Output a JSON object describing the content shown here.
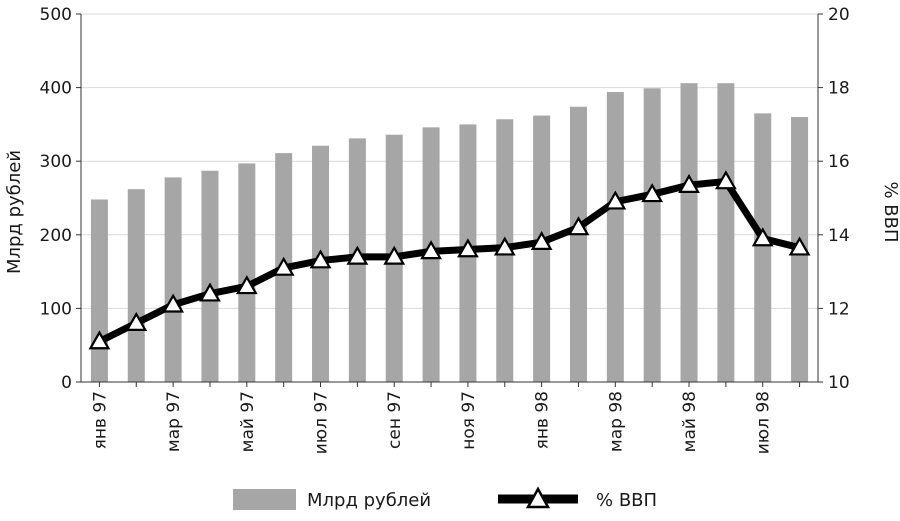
{
  "chart_data": {
    "type": "bar+line",
    "x_labels_shown": [
      "янв 97",
      "мар 97",
      "май 97",
      "июл 97",
      "сен 97",
      "ноя 97",
      "янв 98",
      "мар 98",
      "май 98",
      "июл 98"
    ],
    "categories": [
      "янв 97",
      "фев 97",
      "мар 97",
      "апр 97",
      "май 97",
      "июн 97",
      "июл 97",
      "авг 97",
      "сен 97",
      "окт 97",
      "ноя 97",
      "дек 97",
      "янв 98",
      "фев 98",
      "мар 98",
      "апр 98",
      "май 98",
      "июн 98",
      "июл 98",
      "авг 98"
    ],
    "series": [
      {
        "name": "Млрд рублей",
        "kind": "bar",
        "axis": "left",
        "color": "#a6a6a6",
        "values": [
          248,
          262,
          278,
          287,
          297,
          311,
          321,
          331,
          336,
          346,
          350,
          357,
          362,
          374,
          394,
          399,
          406,
          406,
          365,
          360
        ]
      },
      {
        "name": "% ВВП",
        "kind": "line",
        "axis": "right",
        "color": "#000000",
        "marker": "triangle",
        "values": [
          11.1,
          11.6,
          12.1,
          12.4,
          12.6,
          13.1,
          13.3,
          13.4,
          13.4,
          13.55,
          13.6,
          13.65,
          13.8,
          14.2,
          14.9,
          15.1,
          15.35,
          15.45,
          13.9,
          13.65
        ]
      }
    ],
    "y_left": {
      "label": "Млрд рублей",
      "min": 0,
      "max": 500,
      "ticks": [
        "0",
        "100",
        "200",
        "300",
        "400",
        "500"
      ]
    },
    "y_right": {
      "label": "% ВВП",
      "min": 10,
      "max": 20,
      "ticks": [
        "10",
        "12",
        "14",
        "16",
        "18",
        "20"
      ]
    },
    "grid": true,
    "legend_position": "bottom",
    "legend": [
      {
        "label": "Млрд рублей",
        "kind": "bar"
      },
      {
        "label": "% ВВП",
        "kind": "line"
      }
    ]
  }
}
